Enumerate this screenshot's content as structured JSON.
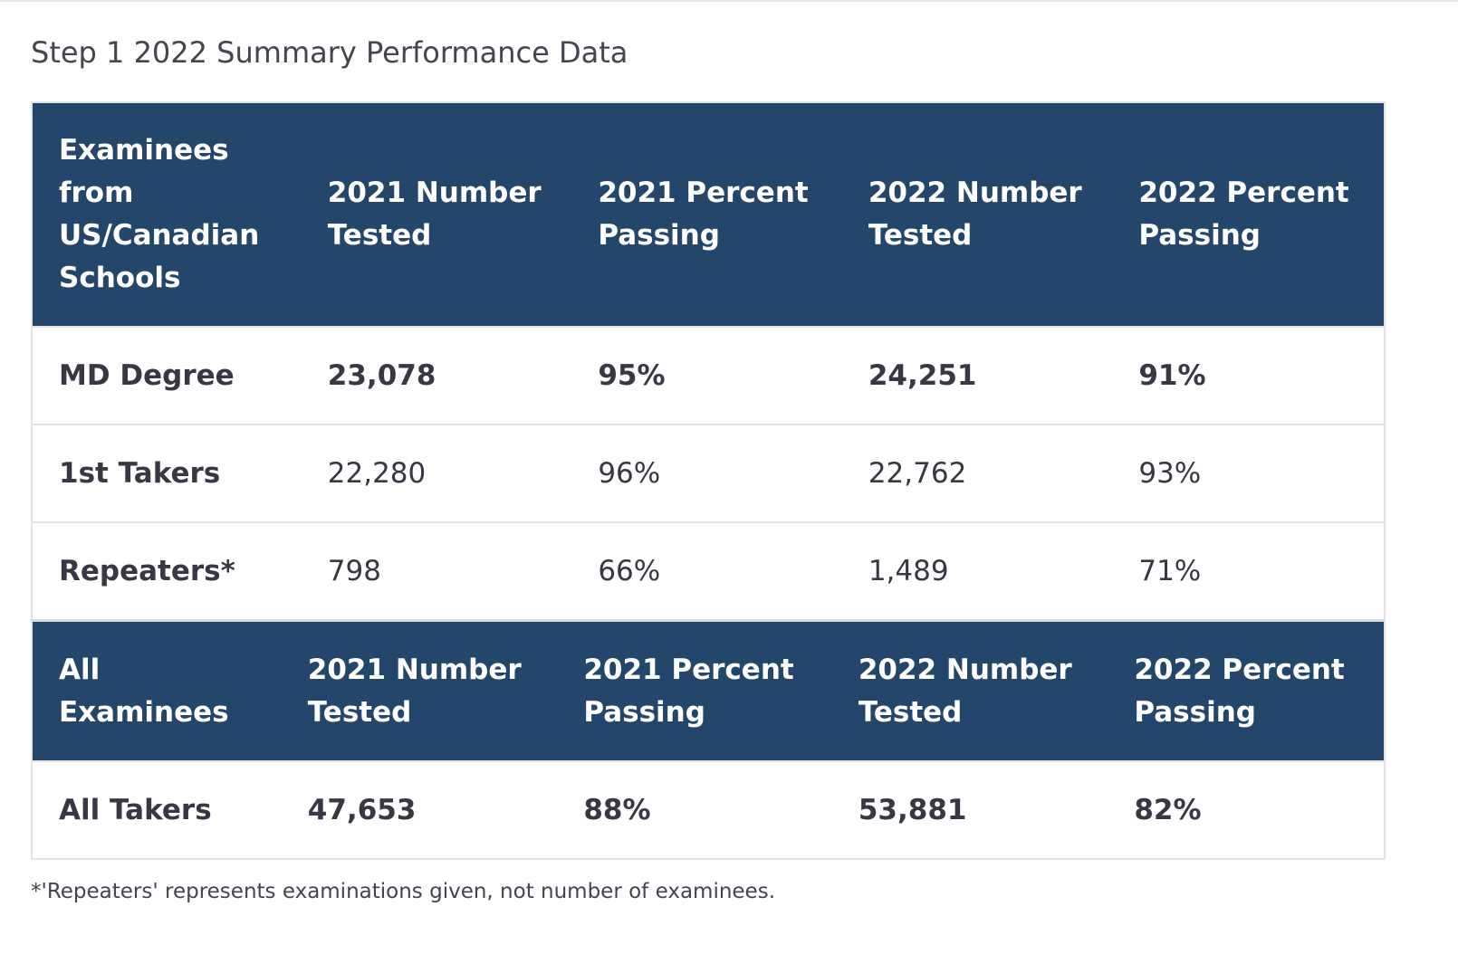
{
  "caption": "Step 1 2022 Summary Performance Data",
  "us_canadian": {
    "header": {
      "group": [
        "Examinees",
        "from",
        "US/Canadian",
        "Schools"
      ],
      "cols": [
        [
          "2021 Number",
          "Tested"
        ],
        [
          "2021 Percent",
          "Passing"
        ],
        [
          "2022 Number",
          "Tested"
        ],
        [
          "2022 Percent",
          "Passing"
        ]
      ]
    },
    "rows": [
      {
        "label": "MD Degree",
        "v2021_tested": "23,078",
        "v2021_pass": "95%",
        "v2022_tested": "24,251",
        "v2022_pass": "91%"
      },
      {
        "label": "1st Takers",
        "v2021_tested": "22,280",
        "v2021_pass": "96%",
        "v2022_tested": "22,762",
        "v2022_pass": "93%"
      },
      {
        "label": "Repeaters*",
        "v2021_tested": "798",
        "v2021_pass": "66%",
        "v2022_tested": "1,489",
        "v2022_pass": "71%"
      }
    ]
  },
  "all_examinees": {
    "header": {
      "group": [
        "All",
        "Examinees"
      ],
      "cols": [
        [
          "2021 Number",
          "Tested"
        ],
        [
          "2021 Percent",
          "Passing"
        ],
        [
          "2022 Number",
          "Tested"
        ],
        [
          "2022 Percent",
          "Passing"
        ]
      ]
    },
    "rows": [
      {
        "label": "All Takers",
        "v2021_tested": "47,653",
        "v2021_pass": "88%",
        "v2022_tested": "53,881",
        "v2022_pass": "82%"
      }
    ]
  },
  "footnote": "*'Repeaters' represents examinations given, not number of examinees.",
  "colors": {
    "header_bg": "#25466b",
    "header_text": "#ffffff",
    "border": "#e3e3e7"
  }
}
